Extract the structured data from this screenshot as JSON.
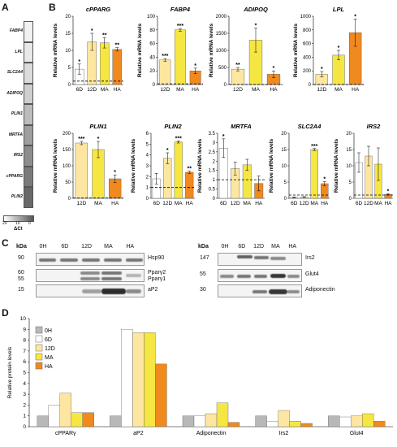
{
  "panel_letters": [
    "A",
    "B",
    "C",
    "D"
  ],
  "heatmap": {
    "genes": [
      "FABP4",
      "LPL",
      "SLC2A4",
      "ADIPOQ",
      "PLIN1",
      "MRTFA",
      "IRS2",
      "cPPARG",
      "PLIN2"
    ],
    "shades": [
      "#f2f2f2",
      "#e8e8e8",
      "#dcdcdc",
      "#cfcfcf",
      "#bcbcbc",
      "#9e9e9e",
      "#8c8c8c",
      "#7a7a7a",
      "#686868"
    ],
    "scale_ticks": [
      "20",
      "10",
      "0"
    ],
    "scale_label": "ΔCt"
  },
  "chart_data": [
    {
      "type": "bar",
      "title": "cPPARG",
      "ylabel": "Relative mRNA levels",
      "categories": [
        "6D",
        "12D",
        "MA",
        "HA"
      ],
      "values": [
        4.5,
        12.5,
        12.2,
        10.3
      ],
      "errors": [
        1.5,
        2.5,
        1.5,
        0.5
      ],
      "ylim": [
        0,
        20
      ],
      "yticks": [
        "0",
        "5",
        "10",
        "15",
        "20"
      ],
      "sig": [
        "*",
        "*",
        "**",
        "**"
      ],
      "baseline": 1
    },
    {
      "type": "bar",
      "title": "FABP4",
      "ylabel": "Relative mRNA levels",
      "categories": [
        "12D",
        "MA",
        "HA"
      ],
      "values": [
        36,
        80,
        20
      ],
      "errors": [
        2,
        2,
        4
      ],
      "ylim": [
        0,
        100
      ],
      "yticks": [
        "0",
        "20",
        "40",
        "60",
        "80",
        "100"
      ],
      "sig": [
        "***",
        "***",
        "*"
      ],
      "baseline": 1
    },
    {
      "type": "bar",
      "title": "ADIPOQ",
      "ylabel": "Relative mRNA levels",
      "categories": [
        "12D",
        "MA",
        "HA"
      ],
      "values": [
        450,
        1300,
        300
      ],
      "errors": [
        50,
        350,
        100
      ],
      "ylim": [
        0,
        2000
      ],
      "yticks": [
        "0",
        "500",
        "1000",
        "1500",
        "2000"
      ],
      "sig": [
        "**",
        "*",
        "*"
      ],
      "baseline": 1
    },
    {
      "type": "bar",
      "title": "LPL",
      "ylabel": "Relative mRNA levels",
      "categories": [
        "12D",
        "MA",
        "HA"
      ],
      "values": [
        150,
        430,
        760
      ],
      "errors": [
        40,
        70,
        200
      ],
      "ylim": [
        0,
        1000
      ],
      "yticks": [
        "0",
        "200",
        "400",
        "600",
        "800",
        "1000"
      ],
      "sig": [
        "*",
        "*",
        "*"
      ],
      "baseline": 1
    },
    {
      "type": "bar",
      "title": "PLIN1",
      "ylabel": "Relative mRNA levels",
      "categories": [
        "12D",
        "MA",
        "HA"
      ],
      "values": [
        170,
        150,
        60
      ],
      "errors": [
        5,
        25,
        12
      ],
      "ylim": [
        0,
        200
      ],
      "yticks": [
        "0",
        "50",
        "100",
        "150",
        "200"
      ],
      "sig": [
        "***",
        "*",
        "*"
      ],
      "baseline": 1
    },
    {
      "type": "bar",
      "title": "PLIN2",
      "ylabel": "Relative mRNA levels",
      "categories": [
        "6D",
        "12D",
        "MA",
        "HA"
      ],
      "values": [
        1.8,
        3.7,
        5.2,
        2.4
      ],
      "errors": [
        0.5,
        0.5,
        0.1,
        0.1
      ],
      "ylim": [
        0,
        6
      ],
      "yticks": [
        "0",
        "1",
        "2",
        "3",
        "4",
        "5",
        "6"
      ],
      "sig": [
        "",
        "*",
        "***",
        "**"
      ],
      "baseline": 1
    },
    {
      "type": "bar",
      "title": "MRTFA",
      "ylabel": "Relative mRNA levels",
      "categories": [
        "6D",
        "12D",
        "MA",
        "HA"
      ],
      "values": [
        2.7,
        1.6,
        1.8,
        0.8
      ],
      "errors": [
        0.5,
        0.35,
        0.3,
        0.4
      ],
      "ylim": [
        0,
        3.5
      ],
      "yticks": [
        "0",
        "0.5",
        "1",
        "1.5",
        "2",
        "2.5",
        "3",
        "3.5"
      ],
      "sig": [
        "*",
        "",
        "",
        ""
      ],
      "baseline": 1
    },
    {
      "type": "bar",
      "title": "SLC2A4",
      "ylabel": "Relative mRNA levels",
      "categories": [
        "6D",
        "12D",
        "MA",
        "HA"
      ],
      "values": [
        0.3,
        0.4,
        15,
        4.5
      ],
      "errors": [
        0.1,
        0.1,
        0.3,
        0.6
      ],
      "ylim": [
        0,
        20
      ],
      "yticks": [
        "0",
        "5",
        "10",
        "15",
        "20"
      ],
      "sig": [
        "",
        "",
        "***",
        "*"
      ],
      "baseline": 1
    },
    {
      "type": "bar",
      "title": "IRS2",
      "ylabel": "Relative mRNA levels",
      "categories": [
        "6D",
        "12D",
        "MA",
        "HA"
      ],
      "values": [
        11,
        13,
        10.5,
        1.2
      ],
      "errors": [
        3,
        3,
        5,
        0.2
      ],
      "ylim": [
        0,
        20
      ],
      "yticks": [
        "0",
        "5",
        "10",
        "15",
        "20"
      ],
      "sig": [
        "",
        "",
        "",
        "*"
      ],
      "baseline": 1
    },
    {
      "type": "bar",
      "ylabel": "Relative protein levels",
      "categories": [
        "cPPARγ",
        "aP2",
        "Adiponectin",
        "Irs2",
        "Glut4"
      ],
      "series": [
        {
          "name": "0H",
          "values": [
            1,
            1,
            1,
            1,
            1
          ]
        },
        {
          "name": "6D",
          "values": [
            2,
            9,
            1,
            0.5,
            0.9
          ]
        },
        {
          "name": "12D",
          "values": [
            3.1,
            8.7,
            1.2,
            1.5,
            1
          ]
        },
        {
          "name": "MA",
          "values": [
            1.3,
            8.7,
            2.2,
            0.5,
            1.2
          ]
        },
        {
          "name": "HA",
          "values": [
            1.3,
            5.8,
            0.4,
            0.3,
            0.5
          ]
        }
      ],
      "ylim": [
        0,
        10
      ],
      "yticks": [
        "0",
        "1",
        "2",
        "3",
        "4",
        "5",
        "6",
        "7",
        "8",
        "9",
        "10"
      ],
      "legend": "top-left"
    }
  ],
  "colors": {
    "6D": "#ffffff",
    "12D": "#fde7a0",
    "MA": "#f5e642",
    "HA": "#f0891e",
    "0H": "#b8b8b8"
  },
  "blot_left": {
    "kda_label": "kDa",
    "lanes": [
      "0H",
      "6D",
      "12D",
      "MA",
      "HA"
    ],
    "rows": [
      {
        "kda": [
          "90"
        ],
        "names": [
          "Hsp90"
        ]
      },
      {
        "kda": [
          "60",
          "55"
        ],
        "names": [
          "Pparγ2",
          "Pparγ1"
        ]
      },
      {
        "kda": [
          "15"
        ],
        "names": [
          "aP2"
        ]
      }
    ]
  },
  "blot_right": {
    "kda_label": "kDa",
    "lanes": [
      "0H",
      "6D",
      "12D",
      "MA",
      "HA"
    ],
    "rows": [
      {
        "kda": [
          "147"
        ],
        "names": [
          "Irs2"
        ]
      },
      {
        "kda": [
          "55"
        ],
        "names": [
          "Glut4"
        ]
      },
      {
        "kda": [
          "30"
        ],
        "names": [
          "Adiponectin"
        ]
      }
    ]
  }
}
